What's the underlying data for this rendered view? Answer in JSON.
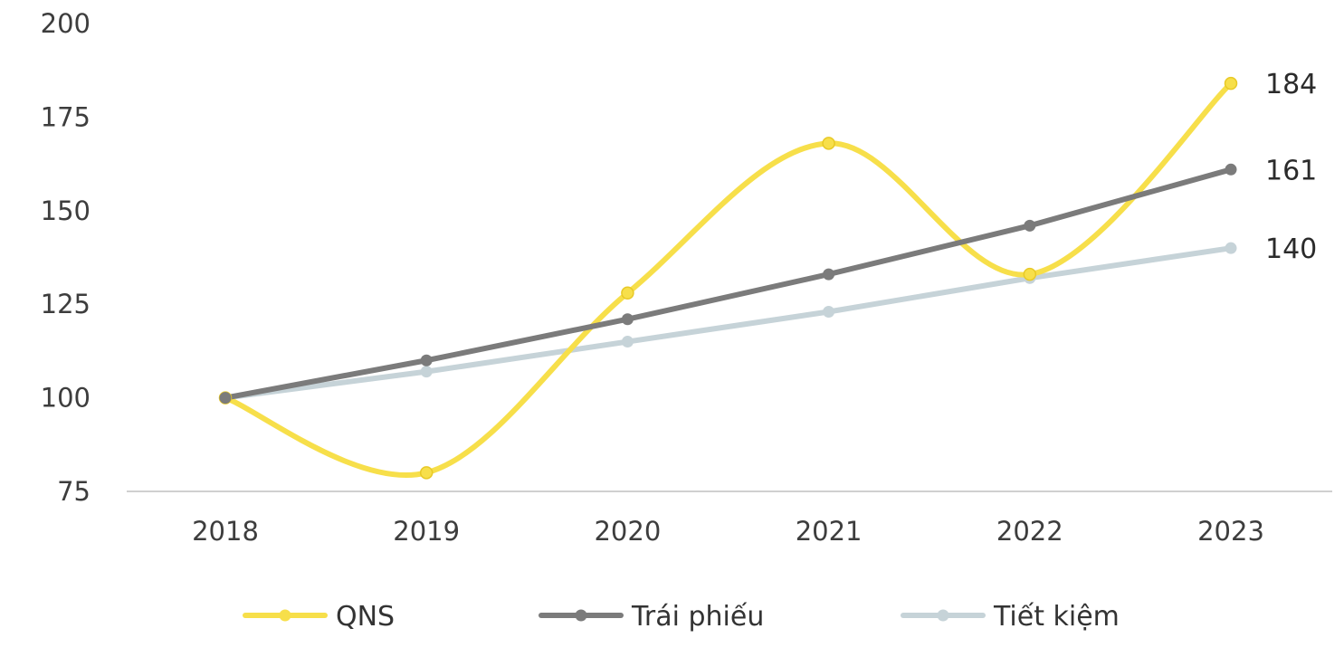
{
  "chart_data": {
    "type": "line",
    "title": "",
    "xlabel": "",
    "ylabel": "",
    "x": [
      "2018",
      "2019",
      "2020",
      "2021",
      "2022",
      "2023"
    ],
    "ylim": [
      75,
      200
    ],
    "yticks": [
      "75",
      "100",
      "125",
      "150",
      "175",
      "200"
    ],
    "grid": false,
    "legend_position": "bottom",
    "series": [
      {
        "name": "QNS",
        "color": "#f7df4a",
        "smooth": true,
        "values": [
          100,
          80,
          128,
          168,
          133,
          184
        ],
        "end_label": "184"
      },
      {
        "name": "Trái phiếu",
        "color": "#7b7b7b",
        "smooth": false,
        "values": [
          100,
          110,
          121,
          133,
          146,
          161
        ],
        "end_label": "161"
      },
      {
        "name": "Tiết kiệm",
        "color": "#c6d3d8",
        "smooth": false,
        "values": [
          100,
          107,
          115,
          123,
          132,
          140
        ],
        "end_label": "140"
      }
    ]
  }
}
